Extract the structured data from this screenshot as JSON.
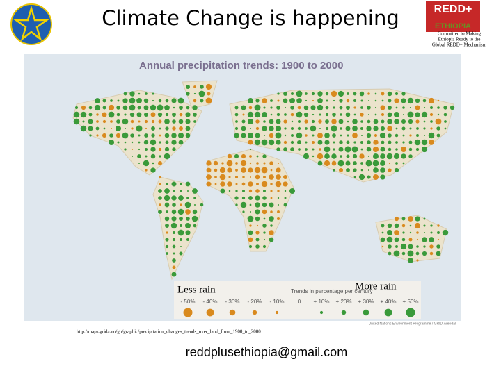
{
  "header": {
    "title": "Climate Change is happening"
  },
  "logo": {
    "top": "REDD+",
    "bottom": "ETHIOPIA",
    "caption": [
      "Committed to Making",
      "Ethiopia Ready to the",
      "Global REDD+ Mechanism"
    ]
  },
  "map": {
    "title": "Annual precipitation trends: 1900 to 2000",
    "less": "Less rain",
    "more": "More rain",
    "legend_title": "Trends in percentage per century",
    "legend_labels": [
      "- 50%",
      "- 40%",
      "- 30%",
      "- 20%",
      "- 10%",
      "0",
      "+ 10%",
      "+ 20%",
      "+ 30%",
      "+ 40%",
      "+ 50%"
    ],
    "credit": "United Nations Environment Programme / GRID-Arendal",
    "source": "http://maps.grida.no/go/graphic/precipitation_changes_trends_over_land_from_1900_to_2000"
  },
  "footer": {
    "email": "reddplusethiopia@gmail.com"
  }
}
